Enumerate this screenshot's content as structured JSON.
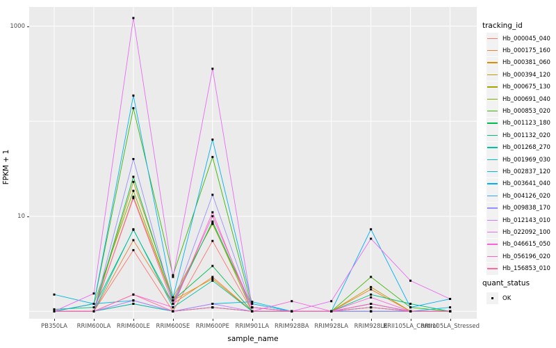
{
  "chart_data": {
    "type": "line",
    "title": "",
    "xlabel": "sample_name",
    "ylabel": "FPKM + 1",
    "y_scale": "log10",
    "ylim": [
      1,
      1250
    ],
    "grid": "major",
    "legend_position": "right",
    "y_ticks": [
      "1000",
      "10"
    ],
    "y_tick_values": [
      1000,
      10
    ],
    "y_gridline_values": [
      1000,
      100,
      10,
      1
    ],
    "panel_bg": "#EBEBEB",
    "gridline_color": "#FFFFFF",
    "point_color": "#000000",
    "categories": [
      "PB350LA",
      "RRIM600LA",
      "RRIM600LE",
      "RRIM600SE",
      "RRIM600PE",
      "RRIM901LA",
      "RRIM928BA",
      "RRIM928LA",
      "RRIM928LE",
      "RRII105LA_Control",
      "RRII105LA_Stressed"
    ],
    "series": [
      {
        "name": "Hb_000045_040",
        "color": "#F8766D",
        "values": [
          1,
          1,
          4.4,
          1,
          5.5,
          1,
          1,
          1,
          1.1,
          1,
          1
        ]
      },
      {
        "name": "Hb_000175_160",
        "color": "#EA8331",
        "values": [
          1,
          1,
          5.6,
          1.2,
          2.3,
          1,
          1,
          1,
          1.7,
          1,
          1
        ]
      },
      {
        "name": "Hb_000381_060",
        "color": "#D89000",
        "values": [
          1,
          1,
          16,
          1.3,
          2.2,
          1,
          1,
          1,
          1.2,
          1,
          1
        ]
      },
      {
        "name": "Hb_000394_120",
        "color": "#C09B00",
        "values": [
          1,
          1,
          23,
          1.4,
          8.3,
          1.1,
          1,
          1,
          1.8,
          1,
          1
        ]
      },
      {
        "name": "Hb_000675_130",
        "color": "#A3A500",
        "values": [
          1,
          1,
          1.2,
          1,
          1.1,
          1,
          1,
          1,
          1,
          1,
          1
        ]
      },
      {
        "name": "Hb_000691_040",
        "color": "#7CAE00",
        "values": [
          1,
          1.2,
          18.5,
          1.3,
          8.5,
          1,
          1,
          1,
          1,
          1,
          1
        ]
      },
      {
        "name": "Hb_000853_020",
        "color": "#39B600",
        "values": [
          1,
          1.2,
          137,
          2.4,
          42,
          1.1,
          1,
          1,
          2.3,
          1.1,
          1
        ]
      },
      {
        "name": "Hb_001123_180",
        "color": "#00BB4E",
        "values": [
          1,
          1,
          26,
          1.3,
          3.0,
          1,
          1,
          1,
          1.1,
          1,
          1
        ]
      },
      {
        "name": "Hb_001132_020",
        "color": "#00BF7D",
        "values": [
          1.05,
          1.1,
          7.2,
          1.2,
          8.8,
          1.1,
          1,
          1,
          1.5,
          1.2,
          1
        ]
      },
      {
        "name": "Hb_001268_270",
        "color": "#00C1A3",
        "values": [
          1,
          1,
          7.3,
          1.1,
          2.1,
          1,
          1,
          1,
          1,
          1,
          1
        ]
      },
      {
        "name": "Hb_001969_030",
        "color": "#00BFC4",
        "values": [
          1,
          1,
          1.2,
          1,
          1.1,
          1,
          1,
          1,
          1.2,
          1,
          1
        ]
      },
      {
        "name": "Hb_002837_120",
        "color": "#00BAE0",
        "values": [
          1.5,
          1.2,
          1.3,
          1,
          1.2,
          1.26,
          1,
          1,
          1,
          1,
          1.1
        ]
      },
      {
        "name": "Hb_003641_040",
        "color": "#00B0F6",
        "values": [
          1,
          1.2,
          186,
          1.4,
          64,
          1.2,
          1,
          1,
          7.3,
          1.1,
          1.35
        ]
      },
      {
        "name": "Hb_004126_020",
        "color": "#35A2FF",
        "values": [
          1,
          1,
          1.3,
          1,
          1.1,
          1,
          1,
          1,
          1.1,
          1,
          1
        ]
      },
      {
        "name": "Hb_009838_170",
        "color": "#9590FF",
        "values": [
          1,
          1,
          40,
          1.2,
          16.8,
          1.1,
          1,
          1,
          1.2,
          1,
          1
        ]
      },
      {
        "name": "Hb_012143_010",
        "color": "#C77CFF",
        "values": [
          1,
          1,
          1.3,
          1,
          1.2,
          1,
          1,
          1,
          1,
          1,
          1
        ]
      },
      {
        "name": "Hb_022092_100",
        "color": "#E76BF3",
        "values": [
          1,
          1.54,
          1216,
          2.3,
          356,
          1.1,
          1,
          1.28,
          5.8,
          2.1,
          1.35
        ]
      },
      {
        "name": "Hb_046615_050",
        "color": "#FA62DB",
        "values": [
          1,
          1,
          1.5,
          1.1,
          11,
          1,
          1.28,
          1,
          1.4,
          1,
          1
        ]
      },
      {
        "name": "Hb_056196_020",
        "color": "#FF62BC",
        "values": [
          1,
          1,
          15.5,
          1.2,
          10,
          1.1,
          1,
          1,
          1.2,
          1,
          1
        ]
      },
      {
        "name": "Hb_156853_010",
        "color": "#FF6A98",
        "values": [
          1,
          1,
          1.5,
          1,
          1.1,
          1,
          1,
          1,
          1.1,
          1,
          1
        ]
      }
    ],
    "legend": {
      "tracking_title": "tracking_id",
      "quant_title": "quant_status",
      "quant_label": "OK"
    }
  }
}
